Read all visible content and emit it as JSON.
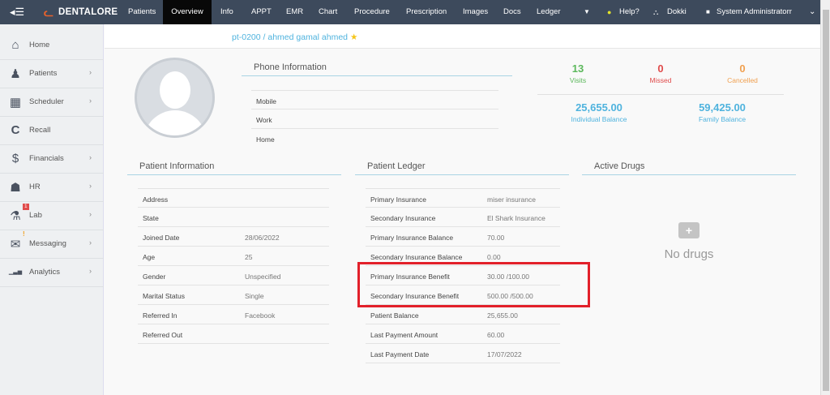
{
  "topbar": {
    "brand": "DENTALORE",
    "nav": [
      "Patients",
      "Overview",
      "Info",
      "APPT",
      "EMR",
      "Chart",
      "Procedure",
      "Prescription",
      "Images",
      "Docs",
      "Ledger"
    ],
    "active": "Overview",
    "help": "Help?",
    "clinic": "Dokki",
    "user": "System Administratorr"
  },
  "sidebar": {
    "items": [
      {
        "label": "Home",
        "icon": "home-icon"
      },
      {
        "label": "Patients",
        "icon": "user-icon"
      },
      {
        "label": "Scheduler",
        "icon": "calendar-icon"
      },
      {
        "label": "Recall",
        "icon": "refresh-icon"
      },
      {
        "label": "Financials",
        "icon": "dollar-icon"
      },
      {
        "label": "HR",
        "icon": "group-icon"
      },
      {
        "label": "Lab",
        "icon": "flask-icon",
        "badge": "1"
      },
      {
        "label": "Messaging",
        "icon": "envelope-icon",
        "warning": "!"
      },
      {
        "label": "Analytics",
        "icon": "bar-chart-icon"
      }
    ]
  },
  "patient": {
    "title": "pt-0200 / ahmed gamal ahmed"
  },
  "phone": {
    "header": "Phone Information",
    "rows": [
      "Mobile",
      "Work",
      "Home"
    ]
  },
  "stats": {
    "visits": "13",
    "visits_label": "Visits",
    "missed": "0",
    "missed_label": "Missed",
    "cancelled": "0",
    "cancelled_label": "Cancelled",
    "individual": "25,655.00",
    "individual_label": "Individual Balance",
    "family": "59,425.00",
    "family_label": "Family Balance"
  },
  "info": {
    "header": "Patient Information",
    "rows": [
      {
        "k": "Address",
        "v": ""
      },
      {
        "k": "State",
        "v": ""
      },
      {
        "k": "Joined Date",
        "v": "28/06/2022"
      },
      {
        "k": "Age",
        "v": "25"
      },
      {
        "k": "Gender",
        "v": "Unspecified"
      },
      {
        "k": "Marital Status",
        "v": "Single"
      },
      {
        "k": "Referred In",
        "v": "Facebook"
      },
      {
        "k": "Referred Out",
        "v": ""
      }
    ]
  },
  "ledger": {
    "header": "Patient Ledger",
    "rows": [
      {
        "k": "Primary Insurance",
        "v": "miser insurance"
      },
      {
        "k": "Secondary Insurance",
        "v": "El Shark Insurance"
      },
      {
        "k": "Primary Insurance Balance",
        "v": "70.00"
      },
      {
        "k": "Secondary Insurance Balance",
        "v": "0.00"
      },
      {
        "k": "Primary Insurance Benefit",
        "v": "30.00 /100.00"
      },
      {
        "k": "Secondary Insurance Benefit",
        "v": "500.00 /500.00"
      },
      {
        "k": "Patient Balance",
        "v": "25,655.00"
      },
      {
        "k": "Last Payment Amount",
        "v": "60.00"
      },
      {
        "k": "Last Payment Date",
        "v": "17/07/2022"
      }
    ]
  },
  "drugs": {
    "header": "Active Drugs",
    "empty": "No drugs"
  },
  "colors": {
    "topbar": "#3d4a5c",
    "accent": "#4fb3de",
    "visits": "#5cb85c",
    "missed": "#e04b4b",
    "cancelled": "#f0a050",
    "highlight": "#e2202a"
  }
}
